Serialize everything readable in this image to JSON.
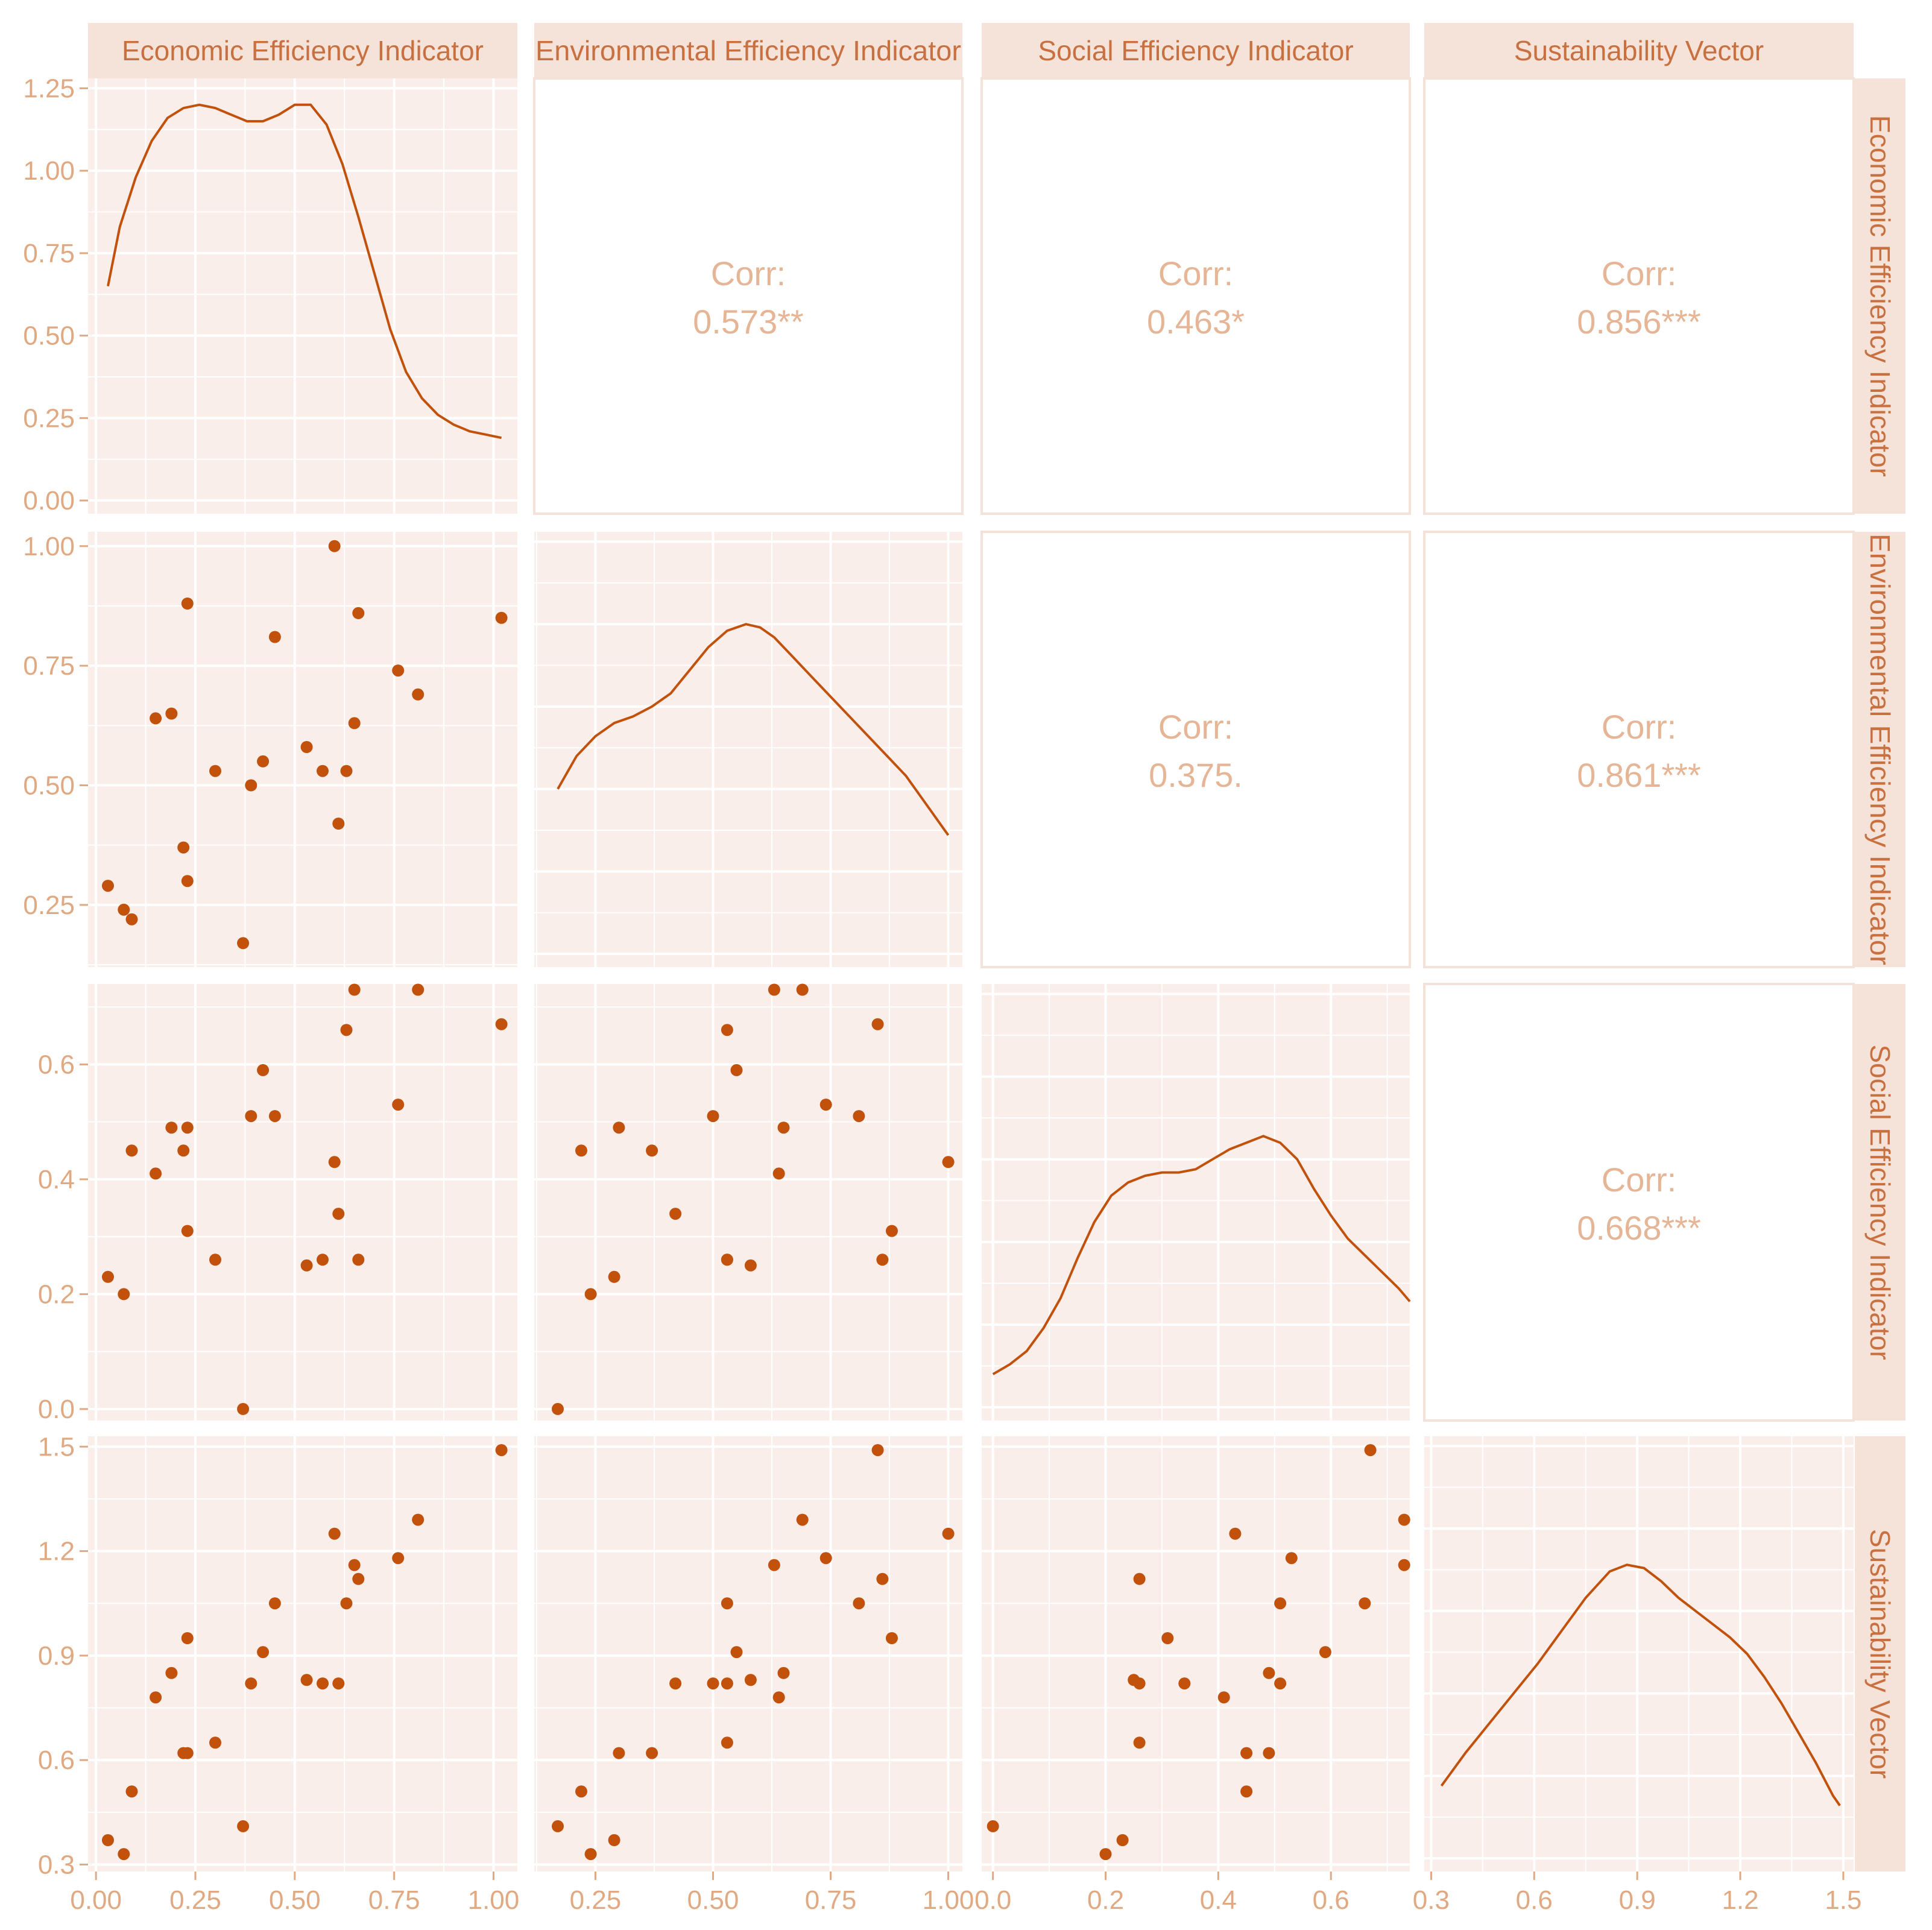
{
  "colors": {
    "panel_bg": "#f9eeea",
    "grid": "#ffffff",
    "strip_bg": "#f5e3da",
    "text": "#c8703f",
    "tick": "#e0a982",
    "corr": "#e6b596",
    "point": "#c1510b",
    "line": "#c1510b",
    "border": "#f3e2da"
  },
  "chart_data": {
    "type": "scatter-matrix",
    "variables": [
      "Economic Efficiency Indicator",
      "Environmental Efficiency Indicator",
      "Social Efficiency Indicator",
      "Sustainability Vector"
    ],
    "ranges": [
      [
        -0.02,
        1.06
      ],
      [
        0.12,
        1.03
      ],
      [
        -0.02,
        0.74
      ],
      [
        0.28,
        1.53
      ]
    ],
    "ticks": [
      {
        "values": [
          0,
          0.25,
          0.5,
          0.75,
          1.0
        ],
        "labels": [
          "0.00",
          "0.25",
          "0.50",
          "0.75",
          "1.00"
        ]
      },
      {
        "values": [
          0.25,
          0.5,
          0.75,
          1.0
        ],
        "labels": [
          "0.25",
          "0.50",
          "0.75",
          "1.00"
        ]
      },
      {
        "values": [
          0,
          0.2,
          0.4,
          0.6
        ],
        "labels": [
          "0.0",
          "0.2",
          "0.4",
          "0.6"
        ]
      },
      {
        "values": [
          0.3,
          0.6,
          0.9,
          1.2,
          1.5
        ],
        "labels": [
          "0.3",
          "0.6",
          "0.9",
          "1.2",
          "1.5"
        ]
      }
    ],
    "density_axis": {
      "ylim": [
        -0.04,
        1.28
      ],
      "ticks": [
        0,
        0.25,
        0.5,
        0.75,
        1.0,
        1.25
      ],
      "labels": [
        "0.00",
        "0.25",
        "0.50",
        "0.75",
        "1.00",
        "1.25"
      ]
    },
    "correlations": [
      {
        "row": 0,
        "col": 1,
        "label": "Corr:",
        "value": "0.573**"
      },
      {
        "row": 0,
        "col": 2,
        "label": "Corr:",
        "value": "0.463*"
      },
      {
        "row": 0,
        "col": 3,
        "label": "Corr:",
        "value": "0.856***"
      },
      {
        "row": 1,
        "col": 2,
        "label": "Corr:",
        "value": "0.375."
      },
      {
        "row": 1,
        "col": 3,
        "label": "Corr:",
        "value": "0.861***"
      },
      {
        "row": 2,
        "col": 3,
        "label": "Corr:",
        "value": "0.668***"
      }
    ],
    "observations": [
      [
        0.03,
        0.29,
        0.23,
        0.37
      ],
      [
        0.07,
        0.24,
        0.2,
        0.33
      ],
      [
        0.09,
        0.22,
        0.45,
        0.51
      ],
      [
        0.15,
        0.64,
        0.41,
        0.78
      ],
      [
        0.19,
        0.65,
        0.49,
        0.85
      ],
      [
        0.22,
        0.37,
        0.45,
        0.62
      ],
      [
        0.23,
        0.88,
        0.31,
        0.95
      ],
      [
        0.23,
        0.3,
        0.49,
        0.62
      ],
      [
        0.3,
        0.53,
        0.26,
        0.65
      ],
      [
        0.37,
        0.17,
        0.0,
        0.41
      ],
      [
        0.39,
        0.5,
        0.51,
        0.82
      ],
      [
        0.42,
        0.55,
        0.59,
        0.91
      ],
      [
        0.45,
        0.81,
        0.51,
        1.05
      ],
      [
        0.53,
        0.58,
        0.25,
        0.83
      ],
      [
        0.57,
        0.53,
        0.26,
        0.82
      ],
      [
        0.6,
        1.0,
        0.43,
        1.25
      ],
      [
        0.61,
        0.42,
        0.34,
        0.82
      ],
      [
        0.63,
        0.53,
        0.66,
        1.05
      ],
      [
        0.65,
        0.63,
        0.73,
        1.16
      ],
      [
        0.66,
        0.86,
        0.26,
        1.12
      ],
      [
        0.76,
        0.74,
        0.53,
        1.18
      ],
      [
        0.81,
        0.69,
        0.73,
        1.29
      ],
      [
        1.02,
        0.85,
        0.67,
        1.49
      ]
    ],
    "densities": [
      {
        "x": [
          0.03,
          0.06,
          0.1,
          0.14,
          0.18,
          0.22,
          0.26,
          0.3,
          0.34,
          0.38,
          0.42,
          0.46,
          0.5,
          0.54,
          0.58,
          0.62,
          0.66,
          0.7,
          0.74,
          0.78,
          0.82,
          0.86,
          0.9,
          0.94,
          0.98,
          1.02
        ],
        "y": [
          0.65,
          0.83,
          0.98,
          1.09,
          1.16,
          1.19,
          1.2,
          1.19,
          1.17,
          1.15,
          1.15,
          1.17,
          1.2,
          1.2,
          1.14,
          1.02,
          0.86,
          0.69,
          0.52,
          0.39,
          0.31,
          0.26,
          0.23,
          0.21,
          0.2,
          0.19
        ]
      },
      {
        "x": [
          0.17,
          0.21,
          0.25,
          0.29,
          0.33,
          0.37,
          0.41,
          0.45,
          0.49,
          0.53,
          0.57,
          0.6,
          0.63,
          0.67,
          0.71,
          0.75,
          0.79,
          0.83,
          0.87,
          0.91,
          0.95,
          0.99,
          1.0
        ],
        "y": [
          0.5,
          0.6,
          0.66,
          0.7,
          0.72,
          0.75,
          0.79,
          0.86,
          0.93,
          0.98,
          1.0,
          0.99,
          0.96,
          0.9,
          0.84,
          0.78,
          0.72,
          0.66,
          0.6,
          0.54,
          0.46,
          0.38,
          0.36
        ]
      },
      {
        "x": [
          0.0,
          0.03,
          0.06,
          0.09,
          0.12,
          0.15,
          0.18,
          0.21,
          0.24,
          0.27,
          0.3,
          0.33,
          0.36,
          0.39,
          0.42,
          0.45,
          0.48,
          0.51,
          0.54,
          0.57,
          0.6,
          0.63,
          0.66,
          0.69,
          0.72,
          0.74
        ],
        "y": [
          0.1,
          0.13,
          0.17,
          0.24,
          0.33,
          0.45,
          0.56,
          0.64,
          0.68,
          0.7,
          0.71,
          0.71,
          0.72,
          0.75,
          0.78,
          0.8,
          0.82,
          0.8,
          0.75,
          0.66,
          0.58,
          0.51,
          0.46,
          0.41,
          0.36,
          0.32
        ]
      },
      {
        "x": [
          0.33,
          0.4,
          0.47,
          0.54,
          0.61,
          0.68,
          0.75,
          0.82,
          0.87,
          0.92,
          0.97,
          1.02,
          1.07,
          1.12,
          1.17,
          1.22,
          1.27,
          1.32,
          1.37,
          1.42,
          1.47,
          1.49
        ],
        "y": [
          0.22,
          0.32,
          0.41,
          0.5,
          0.59,
          0.69,
          0.79,
          0.87,
          0.89,
          0.88,
          0.84,
          0.79,
          0.75,
          0.71,
          0.67,
          0.62,
          0.55,
          0.47,
          0.38,
          0.29,
          0.19,
          0.16
        ]
      }
    ]
  }
}
